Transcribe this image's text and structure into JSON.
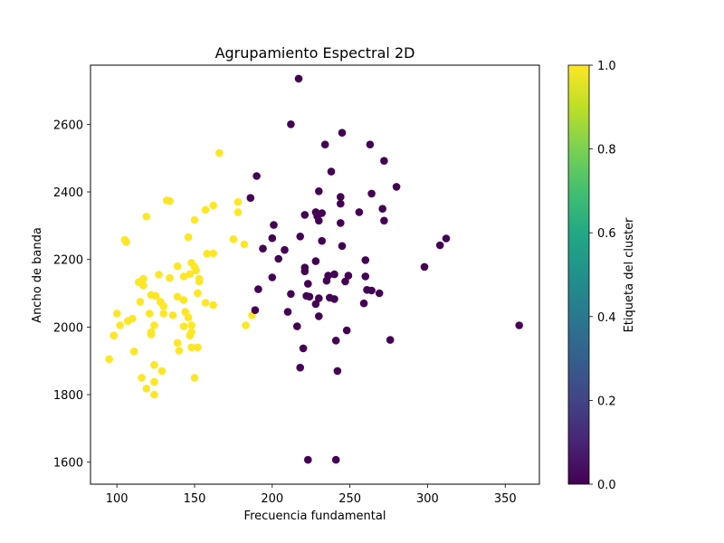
{
  "chart_data": {
    "type": "scatter",
    "title": "Agrupamiento Espectral 2D",
    "xlabel": "Frecuencia fundamental",
    "ylabel": "Ancho de banda",
    "xlim": [
      83,
      372
    ],
    "ylim": [
      1535,
      2775
    ],
    "xticks": [
      100,
      150,
      200,
      250,
      300,
      350
    ],
    "yticks": [
      1600,
      1800,
      2000,
      2200,
      2400,
      2600
    ],
    "grid": false,
    "colormap": "viridis",
    "colorbar": {
      "label": "Etiqueta del cluster",
      "range": [
        0.0,
        1.0
      ],
      "ticks": [
        "0.0",
        "0.2",
        "0.4",
        "0.6",
        "0.8",
        "1.0"
      ]
    },
    "series": [
      {
        "cluster": 1,
        "color": "#fde725",
        "points": [
          [
            166,
            2515
          ],
          [
            119,
            2327
          ],
          [
            132,
            2375
          ],
          [
            134,
            2373
          ],
          [
            150,
            2317
          ],
          [
            157,
            2347
          ],
          [
            162,
            2360
          ],
          [
            105,
            2258
          ],
          [
            106,
            2252
          ],
          [
            146,
            2266
          ],
          [
            178,
            2370
          ],
          [
            178,
            2340
          ],
          [
            175,
            2260
          ],
          [
            182,
            2245
          ],
          [
            158,
            2217
          ],
          [
            162,
            2218
          ],
          [
            139,
            2180
          ],
          [
            148,
            2190
          ],
          [
            150,
            2178
          ],
          [
            151,
            2167
          ],
          [
            147,
            2157
          ],
          [
            153,
            2143
          ],
          [
            153,
            2135
          ],
          [
            143,
            2150
          ],
          [
            134,
            2145
          ],
          [
            127,
            2155
          ],
          [
            117,
            2143
          ],
          [
            114,
            2133
          ],
          [
            117,
            2123
          ],
          [
            152,
            2100
          ],
          [
            139,
            2090
          ],
          [
            143,
            2080
          ],
          [
            157,
            2072
          ],
          [
            162,
            2065
          ],
          [
            128,
            2075
          ],
          [
            130,
            2062
          ],
          [
            130,
            2040
          ],
          [
            122,
            2095
          ],
          [
            125,
            2092
          ],
          [
            115,
            2075
          ],
          [
            121,
            2040
          ],
          [
            136,
            2035
          ],
          [
            144,
            2045
          ],
          [
            146,
            2028
          ],
          [
            110,
            2025
          ],
          [
            107,
            2018
          ],
          [
            102,
            2005
          ],
          [
            100,
            2040
          ],
          [
            124,
            2005
          ],
          [
            143,
            2002
          ],
          [
            148,
            2005
          ],
          [
            148,
            1985
          ],
          [
            147,
            1975
          ],
          [
            122,
            1985
          ],
          [
            122,
            1978
          ],
          [
            98,
            1975
          ],
          [
            139,
            1953
          ],
          [
            140,
            1930
          ],
          [
            148,
            1940
          ],
          [
            152,
            1940
          ],
          [
            111,
            1928
          ],
          [
            95,
            1905
          ],
          [
            124,
            1888
          ],
          [
            129,
            1870
          ],
          [
            150,
            1850
          ],
          [
            116,
            1850
          ],
          [
            124,
            1838
          ],
          [
            119,
            1818
          ],
          [
            124,
            1800
          ],
          [
            183,
            2005
          ],
          [
            187,
            2035
          ]
        ]
      },
      {
        "cluster": 0,
        "color": "#440154",
        "points": [
          [
            217,
            2735
          ],
          [
            212,
            2600
          ],
          [
            234,
            2540
          ],
          [
            245,
            2575
          ],
          [
            263,
            2540
          ],
          [
            272,
            2492
          ],
          [
            238,
            2460
          ],
          [
            190,
            2447
          ],
          [
            280,
            2415
          ],
          [
            230,
            2402
          ],
          [
            264,
            2395
          ],
          [
            244,
            2385
          ],
          [
            186,
            2382
          ],
          [
            244,
            2365
          ],
          [
            271,
            2350
          ],
          [
            256,
            2340
          ],
          [
            228,
            2340
          ],
          [
            232,
            2337
          ],
          [
            221,
            2332
          ],
          [
            229,
            2328
          ],
          [
            230,
            2315
          ],
          [
            272,
            2315
          ],
          [
            244,
            2308
          ],
          [
            201,
            2302
          ],
          [
            312,
            2262
          ],
          [
            308,
            2242
          ],
          [
            200,
            2263
          ],
          [
            218,
            2268
          ],
          [
            232,
            2255
          ],
          [
            245,
            2240
          ],
          [
            194,
            2232
          ],
          [
            208,
            2228
          ],
          [
            204,
            2202
          ],
          [
            228,
            2195
          ],
          [
            260,
            2198
          ],
          [
            221,
            2176
          ],
          [
            221,
            2165
          ],
          [
            298,
            2178
          ],
          [
            236,
            2152
          ],
          [
            240,
            2156
          ],
          [
            200,
            2147
          ],
          [
            235,
            2137
          ],
          [
            247,
            2135
          ],
          [
            249,
            2152
          ],
          [
            260,
            2150
          ],
          [
            223,
            2128
          ],
          [
            191,
            2112
          ],
          [
            261,
            2110
          ],
          [
            264,
            2108
          ],
          [
            269,
            2100
          ],
          [
            212,
            2098
          ],
          [
            222,
            2092
          ],
          [
            224,
            2090
          ],
          [
            230,
            2085
          ],
          [
            237,
            2087
          ],
          [
            240,
            2083
          ],
          [
            259,
            2070
          ],
          [
            228,
            2068
          ],
          [
            189,
            2050
          ],
          [
            210,
            2045
          ],
          [
            230,
            2032
          ],
          [
            216,
            2002
          ],
          [
            248,
            1990
          ],
          [
            359,
            2005
          ],
          [
            276,
            1962
          ],
          [
            241,
            1960
          ],
          [
            220,
            1937
          ],
          [
            218,
            1880
          ],
          [
            242,
            1870
          ],
          [
            223,
            1607
          ],
          [
            241,
            1607
          ]
        ]
      }
    ]
  }
}
